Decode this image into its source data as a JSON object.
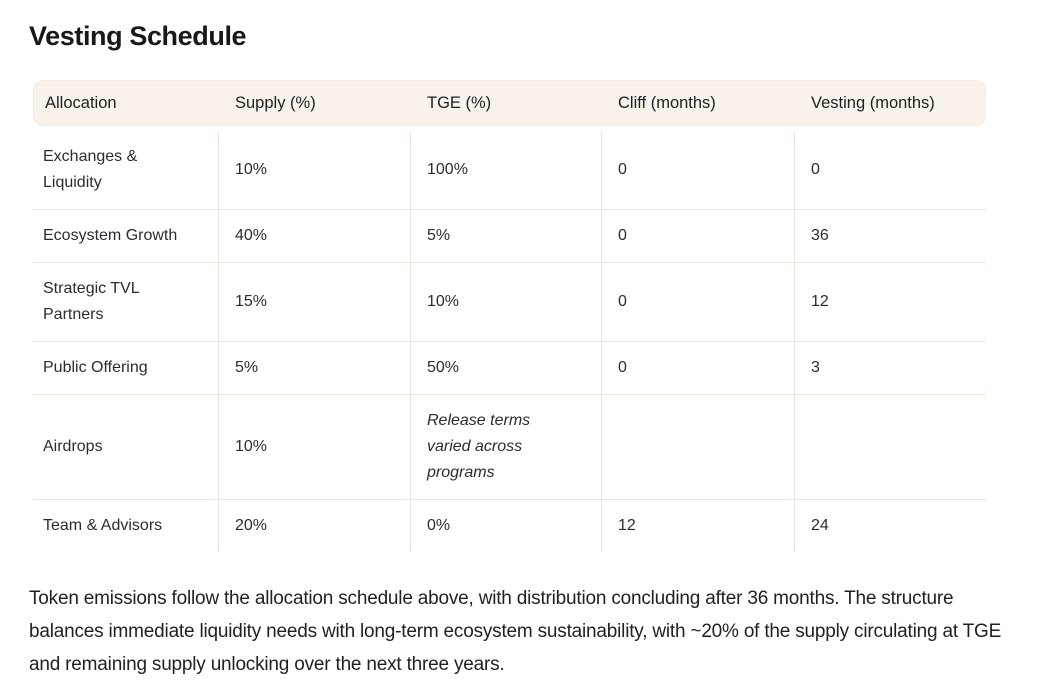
{
  "page": {
    "title": "Vesting Schedule",
    "paragraph": "Token emissions follow the allocation schedule above, with distribution concluding after 36 months. The structure balances immediate liquidity needs with long-term ecosystem sustainability, with ~20% of the supply circulating at TGE and remaining supply unlocking over the next three years."
  },
  "colors": {
    "header_background": "#f9f2ea",
    "divider": "#eae4da",
    "title_text": "#17181a",
    "body_text": "#2a2c30"
  },
  "table": {
    "columns": [
      "Allocation",
      "Supply (%)",
      "TGE (%)",
      "Cliff (months)",
      "Vesting (months)"
    ],
    "rows": [
      [
        "Exchanges & Liquidity",
        "10%",
        "100%",
        "0",
        "0"
      ],
      [
        "Ecosystem Growth",
        "40%",
        "5%",
        "0",
        "36"
      ],
      [
        "Strategic TVL Partners",
        "15%",
        "10%",
        "0",
        "12"
      ],
      [
        "Public Offering",
        "5%",
        "50%",
        "0",
        "3"
      ],
      [
        "Airdrops",
        "10%",
        "Release terms varied across programs",
        "",
        ""
      ],
      [
        "Team & Advisors",
        "20%",
        "0%",
        "12",
        "24"
      ]
    ],
    "notes": {
      "airdrops_tge_note": "Release terms varied across programs"
    }
  }
}
